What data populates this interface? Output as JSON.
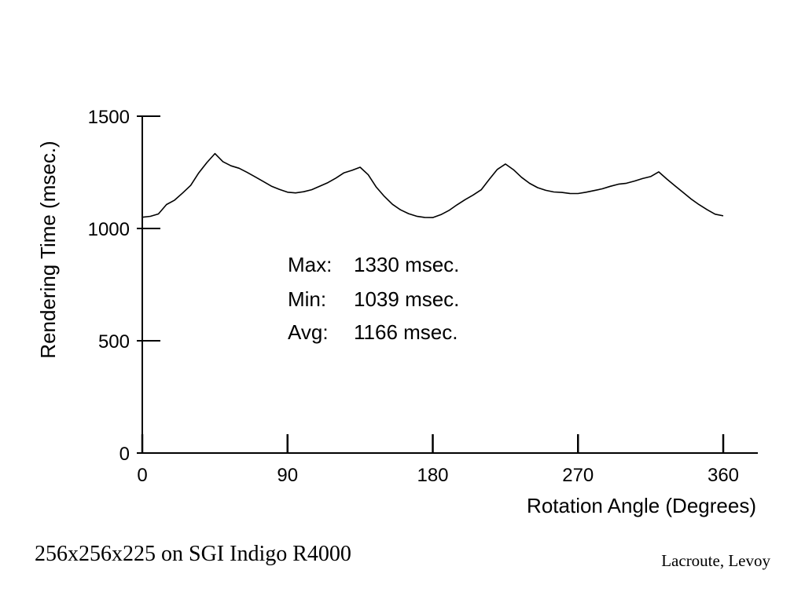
{
  "chart_data": {
    "type": "line",
    "title": "",
    "xlabel": "Rotation Angle (Degrees)",
    "ylabel": "Rendering Time (msec.)",
    "xlim": [
      0,
      360
    ],
    "ylim": [
      0,
      1500
    ],
    "xticks": [
      0,
      90,
      180,
      270,
      360
    ],
    "yticks": [
      0,
      500,
      1000,
      1500
    ],
    "grid": false,
    "legend": "none",
    "series": [
      {
        "name": "",
        "color": "#000000",
        "x": [
          0,
          5,
          10,
          15,
          20,
          25,
          30,
          35,
          40,
          45,
          50,
          55,
          60,
          65,
          70,
          75,
          80,
          85,
          90,
          95,
          100,
          105,
          110,
          115,
          120,
          125,
          130,
          135,
          140,
          145,
          150,
          155,
          160,
          165,
          170,
          175,
          180,
          185,
          190,
          195,
          200,
          205,
          210,
          215,
          220,
          225,
          230,
          235,
          240,
          245,
          250,
          255,
          260,
          265,
          270,
          275,
          280,
          285,
          290,
          295,
          300,
          305,
          310,
          315,
          320,
          325,
          330,
          335,
          340,
          345,
          350,
          355,
          360
        ],
        "y": [
          1050,
          1060,
          1075,
          1120,
          1140,
          1170,
          1200,
          1250,
          1290,
          1325,
          1285,
          1265,
          1255,
          1240,
          1225,
          1210,
          1195,
          1185,
          1175,
          1172,
          1175,
          1180,
          1190,
          1200,
          1215,
          1235,
          1245,
          1260,
          1230,
          1180,
          1145,
          1115,
          1095,
          1080,
          1068,
          1060,
          1055,
          1062,
          1075,
          1095,
          1115,
          1135,
          1160,
          1210,
          1260,
          1290,
          1270,
          1240,
          1215,
          1195,
          1180,
          1168,
          1160,
          1150,
          1145,
          1148,
          1155,
          1165,
          1180,
          1195,
          1205,
          1220,
          1235,
          1245,
          1265,
          1230,
          1195,
          1160,
          1125,
          1095,
          1070,
          1050,
          1045
        ]
      }
    ],
    "annotations": [
      {
        "label": "Max:",
        "value": "1330 msec."
      },
      {
        "label": "Min:",
        "value": "1039 msec."
      },
      {
        "label": "Avg:",
        "value": "1166 msec."
      }
    ]
  },
  "footer": {
    "left": "256x256x225  on SGI Indigo R4000",
    "right": "Lacroute, Levoy"
  }
}
